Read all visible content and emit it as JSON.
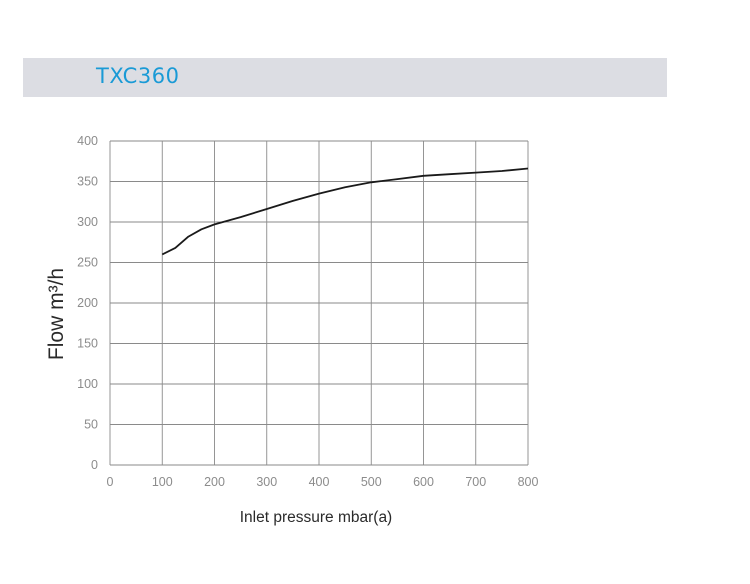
{
  "chart_data": {
    "type": "line",
    "title": "TXC360",
    "xlabel": "Inlet pressure mbar(a)",
    "ylabel": "Flow m³/h",
    "xlim": [
      0,
      800
    ],
    "ylim": [
      0,
      400
    ],
    "x_ticks": [
      0,
      100,
      200,
      300,
      400,
      500,
      600,
      700,
      800
    ],
    "y_ticks": [
      0,
      50,
      100,
      150,
      200,
      250,
      300,
      350,
      400
    ],
    "x_tick_labels": [
      "0",
      "100",
      "200",
      "300",
      "400",
      "500",
      "600",
      "700",
      "800"
    ],
    "y_tick_labels": [
      "0",
      "50",
      "100",
      "150",
      "200",
      "250",
      "300",
      "350",
      "400"
    ],
    "grid": true,
    "series": [
      {
        "color": "#1a1a1a",
        "x": [
          100,
          125,
          150,
          175,
          200,
          250,
          300,
          350,
          400,
          450,
          500,
          550,
          600,
          650,
          700,
          750,
          800
        ],
        "y": [
          260,
          268,
          282,
          291,
          297,
          306,
          316,
          326,
          335,
          343,
          349,
          353,
          357,
          359,
          361,
          363,
          366
        ]
      }
    ]
  }
}
